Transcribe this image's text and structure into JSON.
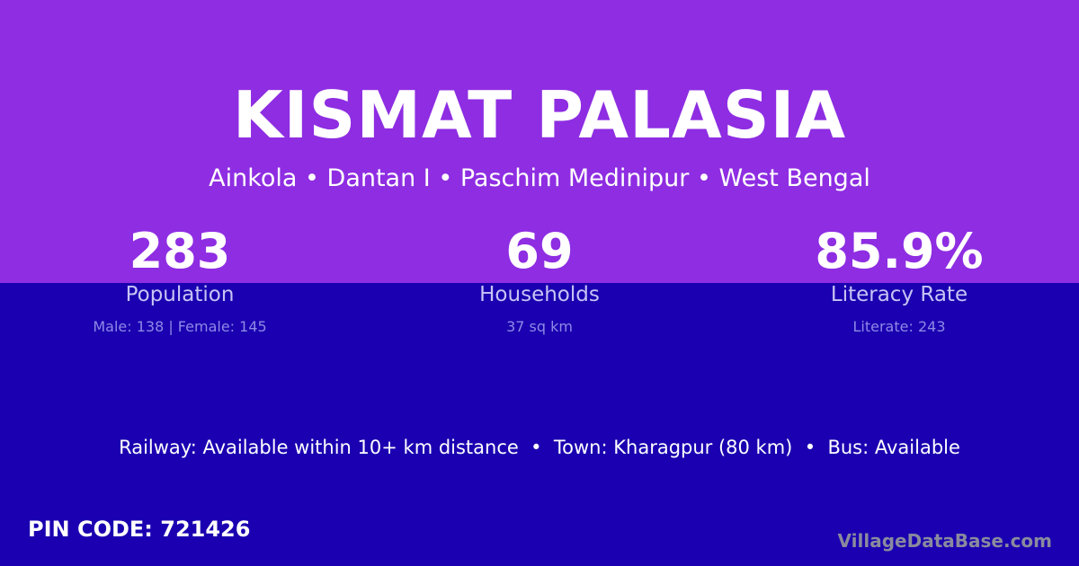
{
  "village": {
    "name": "KISMAT PALASIA",
    "location": "Ainkola • Dantan I • Paschim Medinipur • West Bengal"
  },
  "stats": [
    {
      "value": "283",
      "label": "Population",
      "detail": "Male: 138 | Female: 145"
    },
    {
      "value": "69",
      "label": "Households",
      "detail": "37 sq km"
    },
    {
      "value": "85.9%",
      "label": "Literacy Rate",
      "detail": "Literate: 243"
    }
  ],
  "info": "Railway: Available within 10+ km distance  •  Town: Kharagpur (80 km)  •  Bus: Available",
  "pin": "PIN CODE: 721426",
  "brand": "VillageDataBase.com",
  "colors": {
    "top": "#8e2de2",
    "bottom": "#1a00b0"
  }
}
